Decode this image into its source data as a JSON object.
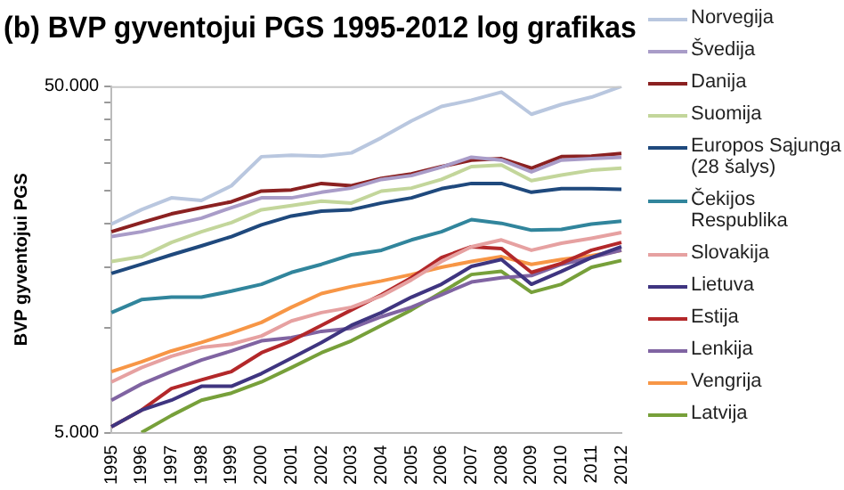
{
  "chart_data": {
    "type": "line",
    "title": "(b) BVP gyventojui PGS 1995-2012 log grafikas",
    "ylabel": "BVP gyventojui PGS",
    "categories": [
      "1995",
      "1996",
      "1997",
      "1998",
      "1999",
      "2000",
      "2001",
      "2002",
      "2003",
      "2004",
      "2005",
      "2006",
      "2007",
      "2008",
      "2009",
      "2010",
      "2011",
      "2012"
    ],
    "log": "y",
    "ylim": [
      5000,
      50000
    ],
    "yticks": [
      {
        "value": 5000,
        "label": "5.000"
      },
      {
        "value": 10000,
        "label": null
      },
      {
        "value": 15000,
        "label": null
      },
      {
        "value": 20000,
        "label": null
      },
      {
        "value": 25000,
        "label": null
      },
      {
        "value": 30000,
        "label": null
      },
      {
        "value": 35000,
        "label": null
      },
      {
        "value": 40000,
        "label": null
      },
      {
        "value": 45000,
        "label": null
      },
      {
        "value": 50000,
        "label": "50.000"
      }
    ],
    "grid": false,
    "legend": "right",
    "marker": "none",
    "line_style": "solid",
    "series": [
      {
        "name": "Norvegija",
        "color": "#b9c7df",
        "values": [
          20000,
          22000,
          23800,
          23400,
          25800,
          31300,
          31600,
          31400,
          32100,
          35500,
          39700,
          43700,
          45600,
          48100,
          41500,
          44300,
          46500,
          50000
        ]
      },
      {
        "name": "Švedija",
        "color": "#a99cc8",
        "values": [
          18400,
          19000,
          19900,
          20800,
          22300,
          23800,
          23800,
          24700,
          25400,
          26900,
          27600,
          29200,
          31200,
          30600,
          28300,
          30600,
          30900,
          31200
        ]
      },
      {
        "name": "Danija",
        "color": "#8b2121",
        "values": [
          19000,
          20200,
          21400,
          22300,
          23200,
          24900,
          25100,
          26200,
          25800,
          27100,
          27900,
          29300,
          30600,
          30900,
          29000,
          31300,
          31400,
          32000
        ]
      },
      {
        "name": "Suomija",
        "color": "#c3d69b",
        "values": [
          15600,
          16100,
          17700,
          19000,
          20200,
          22000,
          22600,
          23300,
          23000,
          24900,
          25400,
          26900,
          29300,
          29600,
          26700,
          27700,
          28600,
          29000
        ]
      },
      {
        "name": "Europos Sąjunga (28 šalys)",
        "color": "#1f497d",
        "values": [
          14400,
          15300,
          16300,
          17300,
          18400,
          19900,
          21100,
          21800,
          22000,
          23000,
          23800,
          25300,
          26200,
          26200,
          24700,
          25300,
          25300,
          25200
        ]
      },
      {
        "name": "Čekijos Respublika",
        "color": "#31859c",
        "values": [
          11100,
          12100,
          12300,
          12300,
          12800,
          13400,
          14500,
          15300,
          16300,
          16800,
          18000,
          19000,
          20600,
          20100,
          19200,
          19300,
          20000,
          20400
        ]
      },
      {
        "name": "Slovakija",
        "color": "#e6a1a1",
        "values": [
          7000,
          7700,
          8300,
          8800,
          9000,
          9500,
          10500,
          11100,
          11500,
          12400,
          13800,
          15600,
          17200,
          18000,
          16800,
          17600,
          18200,
          18900
        ]
      },
      {
        "name": "Lietuva",
        "color": "#3f3580",
        "values": [
          5200,
          5800,
          6200,
          6800,
          6800,
          7400,
          8200,
          9100,
          10200,
          11100,
          12300,
          13400,
          15100,
          15800,
          13400,
          14600,
          16000,
          17200
        ]
      },
      {
        "name": "Estija",
        "color": "#b3282a",
        "values": [
          5200,
          5800,
          6700,
          7100,
          7500,
          8500,
          9200,
          10200,
          11300,
          12500,
          14000,
          16000,
          17200,
          17000,
          14500,
          15400,
          16800,
          17700
        ]
      },
      {
        "name": "Lenkija",
        "color": "#8064a2",
        "values": [
          6200,
          6900,
          7500,
          8100,
          8600,
          9200,
          9400,
          9800,
          10000,
          10800,
          11500,
          12500,
          13600,
          14000,
          14200,
          15300,
          16000,
          16800
        ]
      },
      {
        "name": "Vengrija",
        "color": "#f79646",
        "values": [
          7500,
          8000,
          8600,
          9100,
          9700,
          10400,
          11500,
          12600,
          13200,
          13700,
          14300,
          15000,
          15600,
          16100,
          15300,
          15800,
          16200,
          16800
        ]
      },
      {
        "name": "Latvija",
        "color": "#77a03a",
        "values": [
          null,
          5000,
          5600,
          6200,
          6500,
          7000,
          7700,
          8500,
          9200,
          10200,
          11300,
          12700,
          14300,
          14600,
          12700,
          13400,
          15000,
          15700
        ]
      }
    ]
  }
}
